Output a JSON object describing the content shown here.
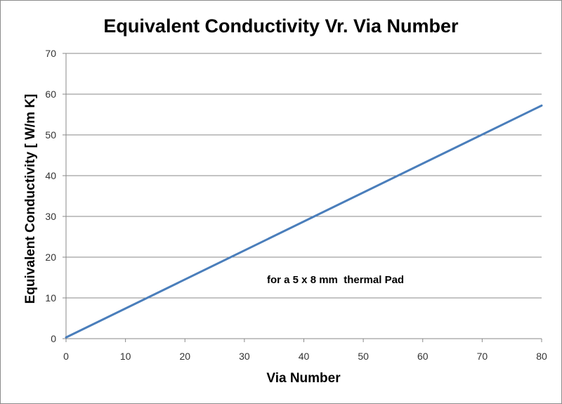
{
  "chart_data": {
    "type": "line",
    "title": "Equivalent Conductivity Vr. Via Number",
    "xlabel": "Via Number",
    "ylabel": "Equivalent Conductivity [ W/m K]",
    "xlim": [
      0,
      80
    ],
    "ylim": [
      0,
      70
    ],
    "xticks": [
      0,
      10,
      20,
      30,
      40,
      50,
      60,
      70,
      80
    ],
    "yticks": [
      0,
      10,
      20,
      30,
      40,
      50,
      60,
      70
    ],
    "grid": true,
    "annotation": "for a 5 x 8 mm  thermal Pad",
    "series": [
      {
        "color": "#4a7ebb",
        "x": [
          0,
          80
        ],
        "y": [
          0.3,
          57.2
        ]
      }
    ]
  }
}
